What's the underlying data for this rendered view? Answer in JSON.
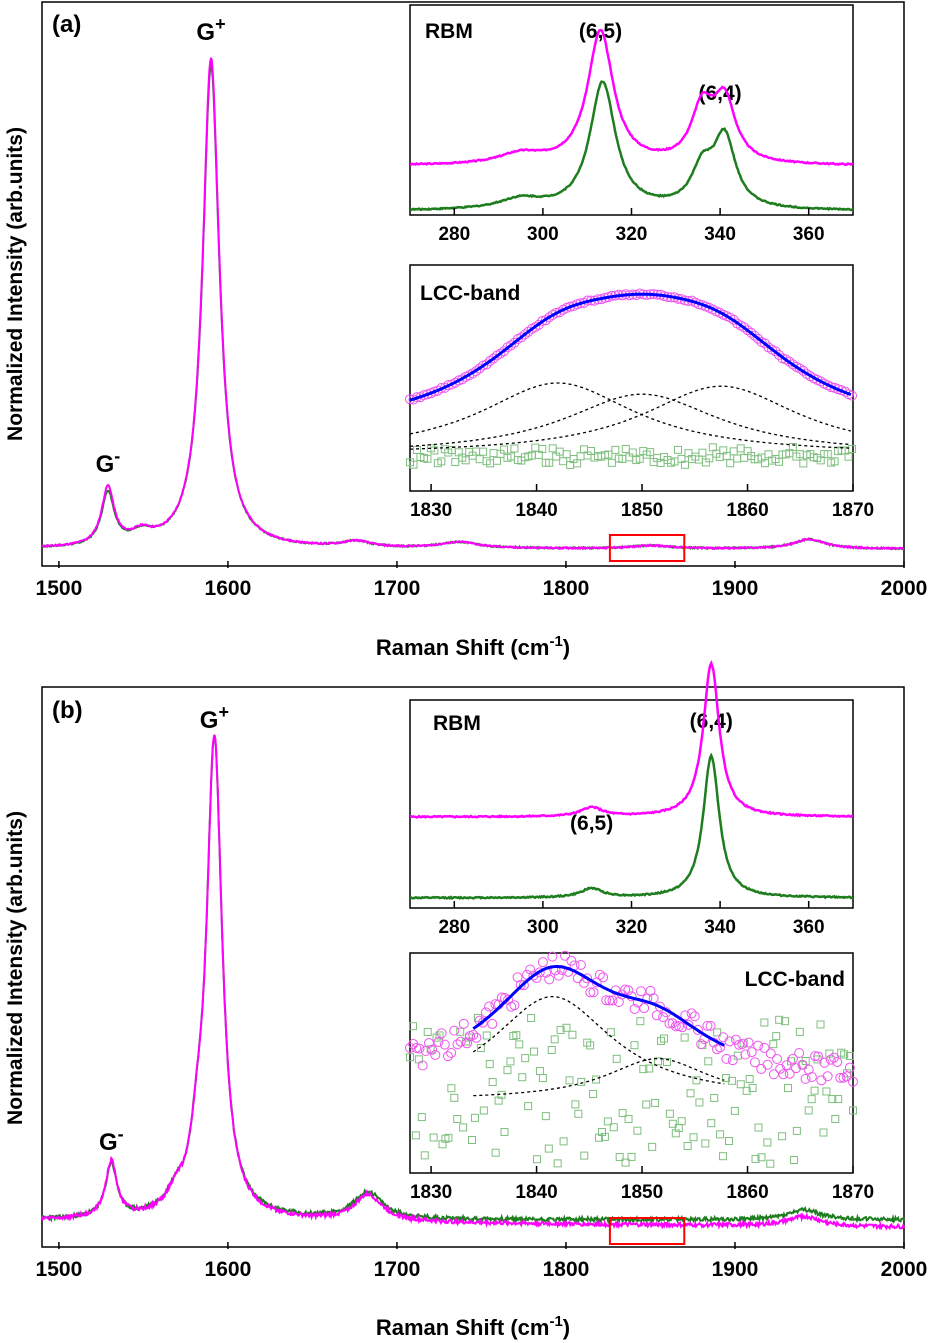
{
  "colors": {
    "magenta": "#ff00ff",
    "green": "#1e7d1e",
    "blue": "#0000ff",
    "red": "#ff0000",
    "dotted": "#000000"
  },
  "chart_data": [
    {
      "type": "line",
      "panel_label": "(a)",
      "xlabel_main": "Raman Shift (cm",
      "xlabel_sup": "-1",
      "xlabel_end": ")",
      "ylabel": "Normalized Intensity (arb.units)",
      "xlim": [
        1490,
        2000
      ],
      "xticks": [
        "1500",
        "1600",
        "1700",
        "1800",
        "1900",
        "2000"
      ],
      "annotations": [
        {
          "base": "G",
          "sup": "+",
          "x": 1590
        },
        {
          "base": "G",
          "sup": "-",
          "x": 1529
        }
      ],
      "highlight_box_x": [
        1826,
        1870
      ],
      "series": [
        {
          "name": "magenta",
          "peaks": [
            [
              1529,
              0.115,
              4.5
            ],
            [
              1590,
              0.98,
              6.0
            ],
            [
              1549,
              0.022,
              8
            ],
            [
              1676,
              0.012,
              10
            ],
            [
              1737,
              0.012,
              14
            ],
            [
              1850,
              0.006,
              14
            ],
            [
              1944,
              0.019,
              11
            ]
          ]
        },
        {
          "name": "green",
          "peaks": [
            [
              1529,
              0.105,
              4.5
            ],
            [
              1590,
              0.965,
              6.0
            ],
            [
              1549,
              0.022,
              8
            ],
            [
              1676,
              0.012,
              10
            ],
            [
              1737,
              0.012,
              14
            ],
            [
              1850,
              0.006,
              14
            ],
            [
              1944,
              0.019,
              11
            ]
          ]
        }
      ],
      "insets": [
        {
          "title": "RBM",
          "xlim": [
            270,
            370
          ],
          "xticks": [
            "280",
            "300",
            "320",
            "340",
            "360"
          ],
          "peak_labels": [
            {
              "text": "(6,5)",
              "x": 313
            },
            {
              "text": "(6,4)",
              "x": 340
            }
          ],
          "series": [
            {
              "name": "magenta",
              "offset": 0.22,
              "peaks": [
                [
                  313,
                  0.65,
                  3.5
                ],
                [
                  336,
                  0.26,
                  3
                ],
                [
                  341,
                  0.3,
                  3
                ],
                [
                  295,
                  0.05,
                  6
                ]
              ]
            },
            {
              "name": "green",
              "offset": 0.0,
              "peaks": [
                [
                  313.5,
                  0.62,
                  3.5
                ],
                [
                  336,
                  0.18,
                  3
                ],
                [
                  341,
                  0.34,
                  3
                ],
                [
                  295,
                  0.05,
                  6
                ]
              ]
            }
          ]
        },
        {
          "title": "LCC-band",
          "xlim": [
            1828,
            1870
          ],
          "xticks": [
            "1830",
            "1840",
            "1850",
            "1860",
            "1870"
          ],
          "fit_components": [
            [
              1842,
              0.45,
              9
            ],
            [
              1850,
              0.38,
              9
            ],
            [
              1857.5,
              0.43,
              9
            ]
          ],
          "fit_baseline": 0.12
        }
      ]
    },
    {
      "type": "line",
      "panel_label": "(b)",
      "xlabel_main": "Raman Shift (cm",
      "xlabel_sup": "-1",
      "xlabel_end": ")",
      "ylabel": "Normalized Intensity (arb.units)",
      "xlim": [
        1490,
        2000
      ],
      "xticks": [
        "1500",
        "1600",
        "1700",
        "1800",
        "1900",
        "2000"
      ],
      "annotations": [
        {
          "base": "G",
          "sup": "+",
          "x": 1592
        },
        {
          "base": "G",
          "sup": "-",
          "x": 1531
        }
      ],
      "highlight_box_x": [
        1826,
        1870
      ],
      "series": [
        {
          "name": "green",
          "peaks": [
            [
              1531,
              0.11,
              4
            ],
            [
              1592,
              0.98,
              5.5
            ],
            [
              1582,
              0.09,
              5
            ],
            [
              1569,
              0.03,
              6
            ],
            [
              1683,
              0.055,
              10
            ],
            [
              1941,
              0.02,
              12
            ]
          ]
        },
        {
          "name": "magenta",
          "peaks": [
            [
              1531,
              0.115,
              4
            ],
            [
              1592,
              0.985,
              5.5
            ],
            [
              1582,
              0.09,
              5
            ],
            [
              1569,
              0.03,
              6
            ],
            [
              1683,
              0.055,
              10
            ],
            [
              1941,
              0.02,
              12
            ]
          ]
        }
      ],
      "insets": [
        {
          "title": "RBM",
          "xlim": [
            270,
            370
          ],
          "xticks": [
            "280",
            "300",
            "320",
            "340",
            "360"
          ],
          "peak_labels": [
            {
              "text": "(6,5)",
              "x": 311
            },
            {
              "text": "(6,4)",
              "x": 338
            }
          ],
          "series": [
            {
              "name": "magenta",
              "offset": 0.36,
              "peaks": [
                [
                  311,
                  0.04,
                  3
                ],
                [
                  338,
                  0.68,
                  2.2
                ]
              ]
            },
            {
              "name": "green",
              "offset": 0.0,
              "peaks": [
                [
                  311,
                  0.04,
                  3
                ],
                [
                  338,
                  0.63,
                  2.2
                ]
              ]
            }
          ]
        },
        {
          "title": "LCC-band",
          "xlim": [
            1828,
            1870
          ],
          "xticks": [
            "1830",
            "1840",
            "1850",
            "1860",
            "1870"
          ],
          "fit_components": [
            [
              1841.5,
              0.55,
              7
            ],
            [
              1851.5,
              0.22,
              6
            ]
          ],
          "fit_range": [
            1834,
            1858
          ],
          "fit_baseline": 0.1
        }
      ]
    }
  ]
}
